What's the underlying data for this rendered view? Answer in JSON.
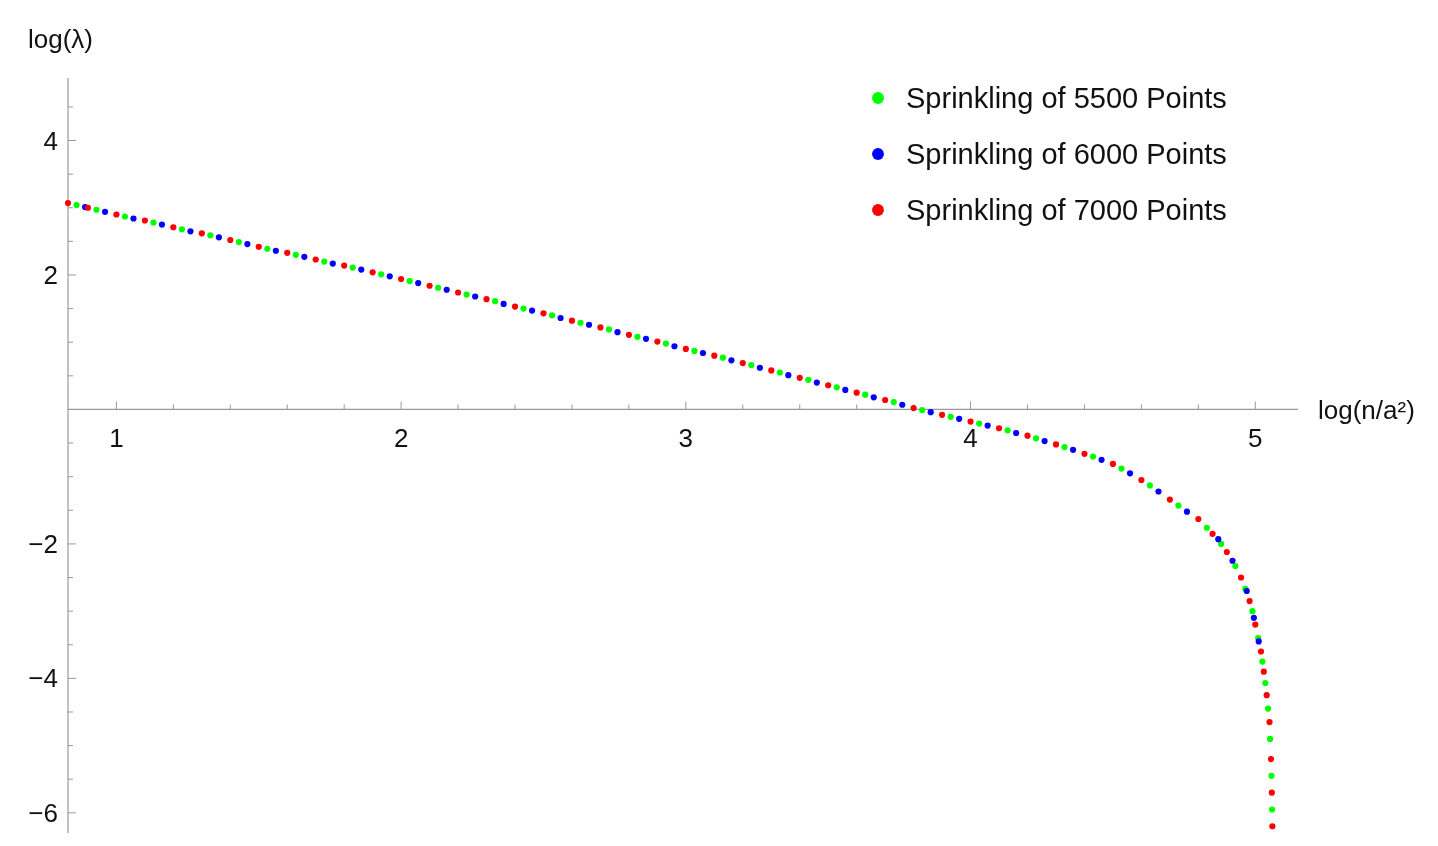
{
  "chart_data": {
    "type": "scatter",
    "xlabel": "log(n/a²)",
    "ylabel": "log(λ)",
    "x": [
      0.83,
      0.9,
      1.0,
      1.1,
      1.2,
      1.3,
      1.4,
      1.5,
      1.6,
      1.7,
      1.8,
      1.9,
      2.0,
      2.1,
      2.2,
      2.3,
      2.4,
      2.5,
      2.6,
      2.7,
      2.8,
      2.9,
      3.0,
      3.1,
      3.2,
      3.3,
      3.4,
      3.5,
      3.6,
      3.7,
      3.8,
      3.9,
      4.0,
      4.1,
      4.2,
      4.3,
      4.4,
      4.5,
      4.6,
      4.7,
      4.8,
      4.85,
      4.9,
      4.95,
      4.98,
      5.0,
      5.02,
      5.03,
      5.04,
      5.05,
      5.055,
      5.058,
      5.06
    ],
    "series": [
      {
        "name": "Sprinkling of 5500 Points",
        "color": "#00ff00",
        "x": [
          0.86,
          0.93,
          1.03,
          1.13,
          1.23,
          1.33,
          1.43,
          1.53,
          1.63,
          1.73,
          1.83,
          1.93,
          2.03,
          2.13,
          2.23,
          2.33,
          2.43,
          2.53,
          2.63,
          2.73,
          2.83,
          2.93,
          3.03,
          3.13,
          3.23,
          3.33,
          3.43,
          3.53,
          3.63,
          3.73,
          3.83,
          3.93,
          4.03,
          4.13,
          4.23,
          4.33,
          4.43,
          4.53,
          4.63,
          4.73,
          4.83,
          4.88,
          4.93,
          4.965,
          4.99,
          5.01,
          5.025,
          5.035,
          5.045,
          5.052,
          5.057,
          5.059
        ],
        "values": [
          3.04,
          2.97,
          2.87,
          2.78,
          2.68,
          2.59,
          2.49,
          2.39,
          2.3,
          2.2,
          2.11,
          2.01,
          1.91,
          1.81,
          1.71,
          1.61,
          1.5,
          1.4,
          1.29,
          1.19,
          1.08,
          0.98,
          0.87,
          0.77,
          0.66,
          0.55,
          0.44,
          0.33,
          0.22,
          0.11,
          -0.01,
          -0.11,
          -0.21,
          -0.31,
          -0.43,
          -0.56,
          -0.7,
          -0.88,
          -1.13,
          -1.43,
          -1.76,
          -2.0,
          -2.33,
          -2.67,
          -3.0,
          -3.4,
          -3.75,
          -4.07,
          -4.45,
          -4.9,
          -5.45,
          -5.95
        ]
      },
      {
        "name": "Sprinkling of 6000 Points",
        "color": "#0000ff",
        "x": [
          0.89,
          0.96,
          1.06,
          1.16,
          1.26,
          1.36,
          1.46,
          1.56,
          1.66,
          1.76,
          1.86,
          1.96,
          2.06,
          2.16,
          2.26,
          2.36,
          2.46,
          2.56,
          2.66,
          2.76,
          2.86,
          2.96,
          3.06,
          3.16,
          3.26,
          3.36,
          3.46,
          3.56,
          3.66,
          3.76,
          3.86,
          3.96,
          4.06,
          4.16,
          4.26,
          4.36,
          4.46,
          4.56,
          4.66,
          4.76,
          4.87,
          4.92,
          4.97,
          4.995,
          5.012
        ],
        "values": [
          3.01,
          2.94,
          2.84,
          2.75,
          2.65,
          2.56,
          2.46,
          2.36,
          2.27,
          2.17,
          2.08,
          1.98,
          1.88,
          1.78,
          1.68,
          1.57,
          1.47,
          1.36,
          1.26,
          1.15,
          1.05,
          0.94,
          0.84,
          0.73,
          0.62,
          0.51,
          0.4,
          0.29,
          0.18,
          0.07,
          -0.04,
          -0.14,
          -0.24,
          -0.35,
          -0.47,
          -0.6,
          -0.75,
          -0.95,
          -1.22,
          -1.52,
          -1.93,
          -2.25,
          -2.7,
          -3.1,
          -3.45
        ]
      },
      {
        "name": "Sprinkling of 7000 Points",
        "color": "#ff0000",
        "values": [
          3.07,
          3.0,
          2.9,
          2.81,
          2.71,
          2.62,
          2.52,
          2.42,
          2.33,
          2.23,
          2.14,
          2.04,
          1.94,
          1.84,
          1.74,
          1.64,
          1.53,
          1.43,
          1.32,
          1.22,
          1.11,
          1.01,
          0.9,
          0.8,
          0.69,
          0.58,
          0.47,
          0.36,
          0.25,
          0.14,
          0.02,
          -0.08,
          -0.18,
          -0.28,
          -0.39,
          -0.52,
          -0.66,
          -0.81,
          -1.05,
          -1.34,
          -1.63,
          -1.85,
          -2.12,
          -2.5,
          -2.85,
          -3.2,
          -3.6,
          -3.9,
          -4.25,
          -4.65,
          -5.2,
          -5.7,
          -6.2
        ]
      }
    ],
    "xlim": [
      0.83,
      5.15
    ],
    "ylim": [
      -6.3,
      4.93
    ],
    "xticks": [
      1,
      {
        "value": 1.2,
        "label": null
      },
      {
        "value": 1.4,
        "label": null
      },
      {
        "value": 1.6,
        "label": null
      },
      {
        "value": 1.8,
        "label": null
      },
      2,
      {
        "value": 2.2,
        "label": null
      },
      {
        "value": 2.4,
        "label": null
      },
      {
        "value": 2.6,
        "label": null
      },
      {
        "value": 2.8,
        "label": null
      },
      3,
      {
        "value": 3.2,
        "label": null
      },
      {
        "value": 3.4,
        "label": null
      },
      {
        "value": 3.6,
        "label": null
      },
      {
        "value": 3.8,
        "label": null
      },
      4,
      {
        "value": 4.2,
        "label": null
      },
      {
        "value": 4.4,
        "label": null
      },
      {
        "value": 4.6,
        "label": null
      },
      {
        "value": 4.8,
        "label": null
      },
      5
    ],
    "yticks": [
      {
        "value": -6,
        "label": "−6"
      },
      {
        "value": -5.5,
        "label": null
      },
      {
        "value": -5,
        "label": null
      },
      {
        "value": -4.5,
        "label": null
      },
      {
        "value": -4,
        "label": "−4"
      },
      {
        "value": -3.5,
        "label": null
      },
      {
        "value": -3,
        "label": null
      },
      {
        "value": -2.5,
        "label": null
      },
      {
        "value": -2,
        "label": "−2"
      },
      {
        "value": -1.5,
        "label": null
      },
      {
        "value": -1,
        "label": null
      },
      {
        "value": -0.5,
        "label": null
      },
      {
        "value": 0.5,
        "label": null
      },
      {
        "value": 1,
        "label": null
      },
      {
        "value": 1.5,
        "label": null
      },
      2,
      {
        "value": 2.5,
        "label": null
      },
      {
        "value": 3,
        "label": null
      },
      {
        "value": 3.5,
        "label": null
      },
      4,
      {
        "value": 4.5,
        "label": null
      }
    ],
    "marker": "circle",
    "legend": "top right",
    "grid": false
  }
}
